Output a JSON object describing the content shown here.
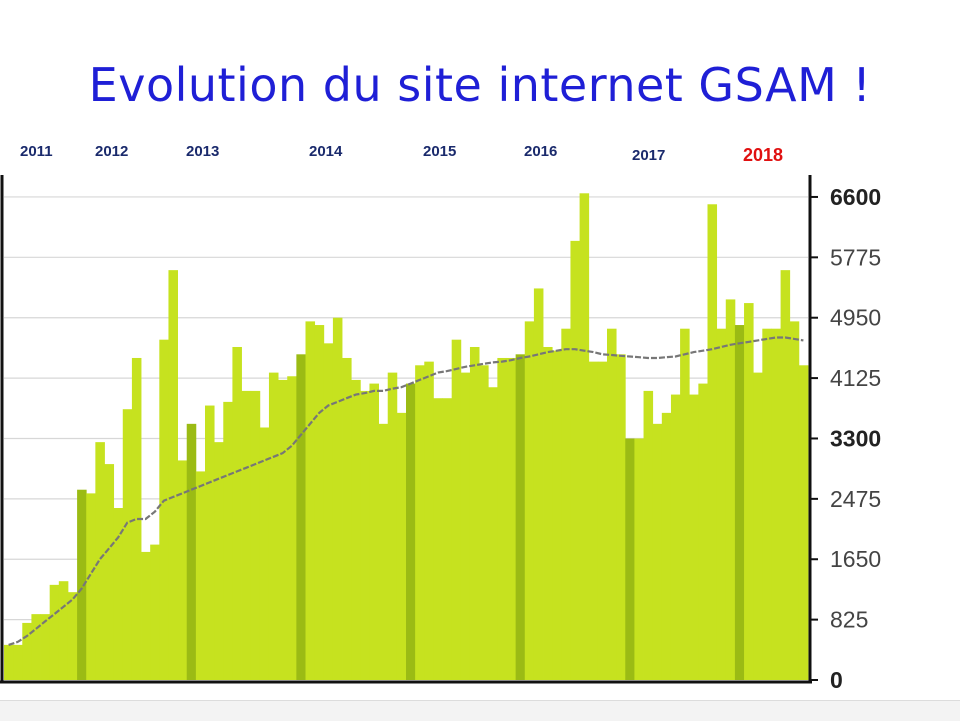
{
  "title": "Evolution du site internet GSAM !",
  "chart_data": {
    "type": "bar",
    "title": "Evolution du site internet GSAM !",
    "xlabel": "",
    "ylabel": "",
    "ylim": [
      0,
      6900
    ],
    "y_ticks": [
      0,
      825,
      1650,
      2475,
      3300,
      4125,
      4950,
      5775,
      6600
    ],
    "y_ticks_bold": [
      0,
      3300,
      6600
    ],
    "grid": true,
    "year_labels": [
      {
        "label": "2011",
        "index": 0
      },
      {
        "label": "2012",
        "index": 8
      },
      {
        "label": "2013",
        "index": 20
      },
      {
        "label": "2014",
        "index": 32
      },
      {
        "label": "2015",
        "index": 44
      },
      {
        "label": "2016",
        "index": 56
      },
      {
        "label": "2017",
        "index": 68
      },
      {
        "label": "2018",
        "index": 80
      }
    ],
    "highlight_year": "2018",
    "series": [
      {
        "values": [
          480,
          480,
          780,
          900,
          900,
          1300,
          1350,
          1200,
          2600,
          2550,
          3250,
          2950,
          2350,
          3700,
          4400,
          1750,
          1850,
          4650,
          5600,
          3000,
          3500,
          2850,
          3750,
          3250,
          3800,
          4550,
          3950,
          3950,
          3450,
          4200,
          4100,
          4150,
          4450,
          4900,
          4850,
          4600,
          4950,
          4400,
          4100,
          3950,
          4050,
          3500,
          4200,
          3650,
          4050,
          4300,
          4350,
          3850,
          3850,
          4650,
          4200,
          4550,
          4300,
          4000,
          4400,
          4400,
          4450,
          4900,
          5350,
          4550,
          4500,
          4800,
          6000,
          6650,
          4350,
          4350,
          4800,
          4450,
          3300,
          3300,
          3950,
          3500,
          3650,
          3900,
          4800,
          3900,
          4050,
          6500,
          4800,
          5200,
          4850,
          5150,
          4200,
          4800,
          4800,
          5600,
          4900,
          4300
        ]
      },
      {
        "name": "trend",
        "values": [
          480,
          520,
          600,
          700,
          800,
          900,
          1000,
          1100,
          1250,
          1450,
          1650,
          1800,
          1950,
          2150,
          2200,
          2200,
          2300,
          2450,
          2500,
          2550,
          2600,
          2650,
          2700,
          2750,
          2800,
          2850,
          2900,
          2950,
          3000,
          3050,
          3100,
          3200,
          3350,
          3500,
          3650,
          3750,
          3800,
          3850,
          3900,
          3920,
          3950,
          3950,
          3980,
          4000,
          4050,
          4100,
          4150,
          4200,
          4220,
          4250,
          4280,
          4300,
          4320,
          4340,
          4350,
          4370,
          4400,
          4420,
          4450,
          4480,
          4500,
          4520,
          4520,
          4500,
          4480,
          4450,
          4440,
          4430,
          4420,
          4410,
          4400,
          4400,
          4410,
          4420,
          4450,
          4480,
          4500,
          4520,
          4550,
          4580,
          4600,
          4620,
          4640,
          4660,
          4680,
          4680,
          4660,
          4640
        ]
      }
    ]
  },
  "colors": {
    "bar": "#c6e21f",
    "year_bar": "#9bbb14",
    "trend": "#777777",
    "title": "#1f1fd6",
    "year_label": "#1a2a6c",
    "year_label_highlight": "#e01010"
  }
}
